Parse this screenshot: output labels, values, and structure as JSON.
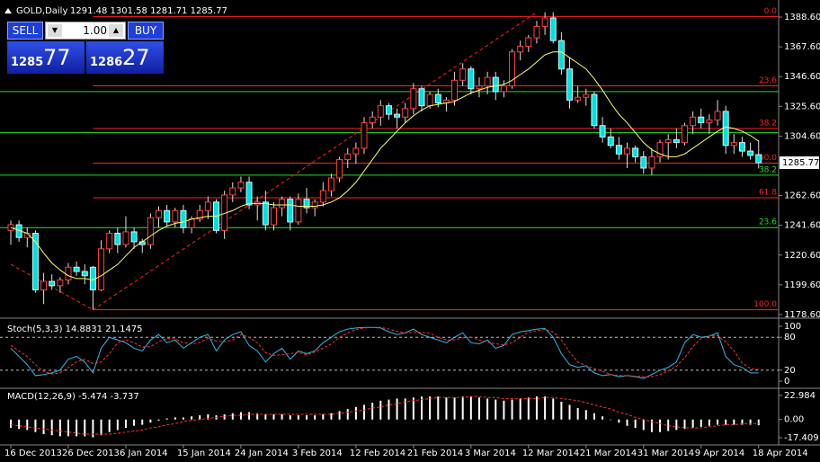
{
  "trade_panel": {
    "sell": "SELL",
    "buy": "BUY",
    "lot": "1.00",
    "bid_big": "1285",
    "bid_small": "77",
    "ask_big": "1286",
    "ask_small": "27"
  },
  "chart_data": [
    {
      "type": "candlestick",
      "title": "GOLD,Daily",
      "quote": "1291.48 1301.58 1281.71 1285.77",
      "categories": [
        "16 Dec 2013",
        null,
        null,
        null,
        null,
        null,
        null,
        "26 Dec 2013",
        null,
        null,
        null,
        null,
        null,
        null,
        "6 Jan 2014",
        null,
        null,
        null,
        null,
        null,
        null,
        "15 Jan 2014",
        null,
        null,
        null,
        null,
        null,
        null,
        "24 Jan 2014",
        null,
        null,
        null,
        null,
        null,
        null,
        "3 Feb 2014",
        null,
        null,
        null,
        null,
        null,
        null,
        "12 Feb 2014",
        null,
        null,
        null,
        null,
        null,
        null,
        "21 Feb 2014",
        null,
        null,
        null,
        null,
        null,
        null,
        "3 Mar 2014",
        null,
        null,
        null,
        null,
        null,
        null,
        "12 Mar 2014",
        null,
        null,
        null,
        null,
        null,
        null,
        "21 Mar 2014",
        null,
        null,
        null,
        null,
        null,
        null,
        "31 Mar 2014",
        null,
        null,
        null,
        null,
        null,
        null,
        "9 Apr 2014",
        null,
        null,
        null,
        null,
        null,
        null,
        "18 Apr 2014"
      ],
      "ohlc": [
        [
          1238,
          1245,
          1228,
          1242
        ],
        [
          1242,
          1245,
          1230,
          1233
        ],
        [
          1233,
          1240,
          1226,
          1236
        ],
        [
          1236,
          1238,
          1194,
          1196
        ],
        [
          1196,
          1208,
          1186,
          1202
        ],
        [
          1202,
          1207,
          1196,
          1199
        ],
        [
          1199,
          1205,
          1194,
          1203
        ],
        [
          1203,
          1215,
          1200,
          1212
        ],
        [
          1212,
          1216,
          1206,
          1209
        ],
        [
          1209,
          1214,
          1200,
          1206
        ],
        [
          1212,
          1213,
          1182,
          1196
        ],
        [
          1196,
          1231,
          1195,
          1225
        ],
        [
          1225,
          1238,
          1222,
          1236
        ],
        [
          1236,
          1240,
          1222,
          1228
        ],
        [
          1228,
          1248,
          1226,
          1237
        ],
        [
          1237,
          1240,
          1225,
          1230
        ],
        [
          1230,
          1232,
          1222,
          1228
        ],
        [
          1228,
          1250,
          1225,
          1247
        ],
        [
          1247,
          1255,
          1240,
          1252
        ],
        [
          1252,
          1256,
          1241,
          1244
        ],
        [
          1244,
          1254,
          1240,
          1252
        ],
        [
          1252,
          1256,
          1236,
          1240
        ],
        [
          1240,
          1248,
          1236,
          1246
        ],
        [
          1246,
          1256,
          1244,
          1252
        ],
        [
          1252,
          1262,
          1246,
          1258
        ],
        [
          1258,
          1260,
          1236,
          1238
        ],
        [
          1238,
          1266,
          1232,
          1263
        ],
        [
          1263,
          1272,
          1258,
          1268
        ],
        [
          1268,
          1276,
          1265,
          1272
        ],
        [
          1272,
          1276,
          1253,
          1256
        ],
        [
          1256,
          1262,
          1245,
          1258
        ],
        [
          1258,
          1266,
          1238,
          1242
        ],
        [
          1242,
          1258,
          1238,
          1254
        ],
        [
          1254,
          1262,
          1248,
          1260
        ],
        [
          1260,
          1262,
          1238,
          1244
        ],
        [
          1244,
          1264,
          1242,
          1260
        ],
        [
          1260,
          1268,
          1250,
          1254
        ],
        [
          1254,
          1260,
          1248,
          1258
        ],
        [
          1258,
          1272,
          1255,
          1266
        ],
        [
          1266,
          1278,
          1262,
          1275
        ],
        [
          1275,
          1290,
          1272,
          1288
        ],
        [
          1288,
          1296,
          1282,
          1292
        ],
        [
          1292,
          1300,
          1285,
          1296
        ],
        [
          1296,
          1318,
          1292,
          1314
        ],
        [
          1314,
          1322,
          1310,
          1318
        ],
        [
          1318,
          1330,
          1312,
          1326
        ],
        [
          1326,
          1328,
          1316,
          1320
        ],
        [
          1320,
          1324,
          1310,
          1318
        ],
        [
          1318,
          1328,
          1314,
          1324
        ],
        [
          1324,
          1342,
          1320,
          1338
        ],
        [
          1338,
          1340,
          1322,
          1326
        ],
        [
          1326,
          1336,
          1324,
          1334
        ],
        [
          1334,
          1338,
          1325,
          1328
        ],
        [
          1328,
          1332,
          1322,
          1330
        ],
        [
          1330,
          1350,
          1326,
          1344
        ],
        [
          1344,
          1356,
          1340,
          1352
        ],
        [
          1352,
          1354,
          1334,
          1338
        ],
        [
          1338,
          1346,
          1332,
          1340
        ],
        [
          1340,
          1350,
          1334,
          1346
        ],
        [
          1346,
          1350,
          1330,
          1336
        ],
        [
          1336,
          1344,
          1332,
          1340
        ],
        [
          1340,
          1366,
          1338,
          1364
        ],
        [
          1364,
          1372,
          1358,
          1368
        ],
        [
          1368,
          1376,
          1364,
          1374
        ],
        [
          1374,
          1386,
          1370,
          1382
        ],
        [
          1382,
          1392,
          1376,
          1388
        ],
        [
          1388,
          1392,
          1370,
          1372
        ],
        [
          1372,
          1378,
          1348,
          1352
        ],
        [
          1352,
          1360,
          1324,
          1330
        ],
        [
          1330,
          1340,
          1328,
          1332
        ],
        [
          1332,
          1338,
          1326,
          1334
        ],
        [
          1334,
          1336,
          1310,
          1312
        ],
        [
          1312,
          1318,
          1300,
          1304
        ],
        [
          1304,
          1310,
          1296,
          1298
        ],
        [
          1298,
          1304,
          1288,
          1292
        ],
        [
          1292,
          1300,
          1282,
          1296
        ],
        [
          1296,
          1298,
          1286,
          1290
        ],
        [
          1290,
          1294,
          1278,
          1282
        ],
        [
          1282,
          1296,
          1277,
          1290
        ],
        [
          1290,
          1302,
          1286,
          1300
        ],
        [
          1300,
          1306,
          1288,
          1302
        ],
        [
          1302,
          1310,
          1296,
          1300
        ],
        [
          1300,
          1314,
          1298,
          1312
        ],
        [
          1312,
          1322,
          1306,
          1318
        ],
        [
          1318,
          1324,
          1310,
          1314
        ],
        [
          1314,
          1320,
          1306,
          1316
        ],
        [
          1316,
          1330,
          1312,
          1322
        ],
        [
          1322,
          1326,
          1292,
          1298
        ],
        [
          1298,
          1306,
          1292,
          1300
        ],
        [
          1300,
          1304,
          1290,
          1294
        ],
        [
          1294,
          1300,
          1288,
          1291
        ],
        [
          1291.48,
          1301.58,
          1281.71,
          1285.77
        ]
      ],
      "ma": {
        "color": "#ffff66",
        "values": [
          1240,
          1238,
          1236,
          1230,
          1222,
          1215,
          1210,
          1206,
          1204,
          1204,
          1203,
          1206,
          1210,
          1214,
          1220,
          1226,
          1230,
          1234,
          1238,
          1241,
          1243,
          1244,
          1246,
          1247,
          1248,
          1248,
          1250,
          1252,
          1255,
          1257,
          1257,
          1257,
          1256,
          1256,
          1256,
          1255,
          1255,
          1255,
          1256,
          1258,
          1261,
          1266,
          1272,
          1280,
          1288,
          1296,
          1302,
          1308,
          1314,
          1319,
          1323,
          1326,
          1327,
          1328,
          1329,
          1332,
          1335,
          1337,
          1339,
          1340,
          1341,
          1344,
          1348,
          1352,
          1357,
          1362,
          1364,
          1364,
          1360,
          1356,
          1352,
          1345,
          1337,
          1328,
          1320,
          1314,
          1307,
          1300,
          1295,
          1292,
          1290,
          1290,
          1292,
          1296,
          1300,
          1304,
          1308,
          1311,
          1310,
          1308,
          1305,
          1301
        ]
      },
      "bull_fill": "#000000",
      "bull_edge": "#ff4040",
      "bear_fill": "#00e0e0",
      "bear_edge": "#c0ffff",
      "wick_color": "#e0e0e0",
      "fibo": {
        "color": "#ff2020",
        "levels": [
          {
            "value": 1389,
            "label": "0.0"
          },
          {
            "value": 1340.1,
            "label": "23.6"
          },
          {
            "value": 1309.9,
            "label": "38.2"
          },
          {
            "value": 1285.5,
            "label": "50.0"
          },
          {
            "value": 1261.1,
            "label": "61.8"
          },
          {
            "value": 1182,
            "label": "100.0"
          }
        ]
      },
      "fibo2": {
        "color": "#20e020",
        "levels": [
          {
            "value": 1336
          },
          {
            "value": 1307
          },
          {
            "value": 1277,
            "label": "38.2"
          },
          {
            "value": 1240,
            "label": "23.6"
          }
        ]
      },
      "trendlines": [
        [
          [
            0,
            1214
          ],
          [
            10,
            1182
          ]
        ],
        [
          [
            10,
            1182
          ],
          [
            64,
            1392
          ]
        ]
      ],
      "current_price": 1285.77,
      "ylim": [
        1177.3,
        1399.4
      ],
      "yticks": [
        {
          "value": 1388.6,
          "label": "1388.60"
        },
        {
          "value": 1367.6,
          "label": "1367.60"
        },
        {
          "value": 1346.6,
          "label": "1346.60"
        },
        {
          "value": 1325.6,
          "label": "1325.60"
        },
        {
          "value": 1304.6,
          "label": "1304.60"
        },
        {
          "value": 1262.6,
          "label": "1262.60"
        },
        {
          "value": 1241.6,
          "label": "1241.60"
        },
        {
          "value": 1220.6,
          "label": "1220.60"
        },
        {
          "value": 1199.6,
          "label": "1199.60"
        },
        {
          "value": 1178.6,
          "label": "1178.60"
        }
      ]
    },
    {
      "type": "line",
      "title": "Stoch(5,3,3) 14.8831 21.1475",
      "series": [
        {
          "color": "#33b8e8",
          "values": [
            60,
            45,
            30,
            10,
            12,
            15,
            20,
            40,
            45,
            35,
            15,
            60,
            80,
            75,
            70,
            60,
            55,
            75,
            85,
            70,
            75,
            60,
            70,
            80,
            85,
            55,
            75,
            85,
            90,
            65,
            55,
            35,
            50,
            60,
            40,
            55,
            50,
            55,
            70,
            80,
            90,
            95,
            97,
            98,
            98,
            97,
            90,
            85,
            88,
            95,
            85,
            80,
            75,
            70,
            80,
            88,
            70,
            68,
            75,
            60,
            65,
            85,
            90,
            92,
            95,
            96,
            80,
            50,
            30,
            25,
            28,
            15,
            10,
            12,
            8,
            10,
            8,
            5,
            12,
            20,
            25,
            35,
            70,
            85,
            80,
            82,
            88,
            45,
            30,
            25,
            15,
            14.9
          ]
        },
        {
          "color": "#ff3030",
          "dash": true,
          "values": [
            65,
            55,
            45,
            30,
            18,
            13,
            15,
            25,
            35,
            40,
            32,
            35,
            50,
            70,
            75,
            70,
            62,
            63,
            72,
            78,
            77,
            70,
            68,
            70,
            78,
            73,
            72,
            75,
            85,
            80,
            70,
            52,
            47,
            48,
            50,
            52,
            48,
            53,
            60,
            68,
            80,
            88,
            94,
            97,
            98,
            98,
            95,
            91,
            88,
            89,
            89,
            87,
            80,
            75,
            75,
            79,
            80,
            75,
            71,
            68,
            66,
            70,
            80,
            89,
            92,
            94,
            90,
            75,
            53,
            35,
            28,
            23,
            18,
            12,
            10,
            10,
            9,
            8,
            8,
            12,
            19,
            27,
            43,
            63,
            78,
            82,
            83,
            72,
            55,
            33,
            23,
            21.1
          ]
        }
      ],
      "levels": [
        80,
        20
      ],
      "ylim": [
        -9.8,
        111.5
      ],
      "yticks": [
        100,
        80,
        20,
        0
      ]
    },
    {
      "type": "bar",
      "title": "MACD(12,26,9) -5.474 -3.737",
      "color": "#ffffff",
      "values": [
        -8,
        -9,
        -10,
        -12,
        -14,
        -15,
        -16,
        -16,
        -16,
        -16,
        -17,
        -15,
        -12,
        -10,
        -8,
        -6,
        -5,
        -3,
        -1,
        1,
        2,
        2,
        3,
        4,
        5,
        4,
        5,
        6,
        7,
        7,
        6,
        5,
        5,
        5,
        4,
        4,
        4,
        4,
        5,
        6,
        8,
        10,
        12,
        14,
        16,
        18,
        19,
        20,
        20,
        21,
        22,
        22,
        22,
        21,
        21,
        22,
        22,
        21,
        20,
        19,
        18,
        19,
        20,
        21,
        22,
        22,
        20,
        17,
        14,
        11,
        9,
        6,
        3,
        0,
        -3,
        -6,
        -8,
        -10,
        -12,
        -12,
        -11,
        -10,
        -9,
        -8,
        -7,
        -6,
        -5,
        -5,
        -5,
        -5,
        -5,
        -5.474
      ],
      "signal": {
        "color": "#ff3030",
        "values": [
          -5,
          -6,
          -7,
          -8,
          -9,
          -10,
          -11,
          -12,
          -13,
          -14,
          -14,
          -14,
          -14,
          -13,
          -12,
          -11,
          -10,
          -8,
          -7,
          -5,
          -4,
          -2,
          -1,
          0,
          1,
          2,
          3,
          4,
          4,
          5,
          5,
          5,
          5,
          5,
          5,
          5,
          5,
          5,
          5,
          5,
          6,
          7,
          8,
          9,
          11,
          12,
          14,
          15,
          17,
          18,
          19,
          20,
          21,
          21,
          21,
          21,
          22,
          22,
          21,
          21,
          20,
          20,
          20,
          20,
          20,
          21,
          21,
          20,
          19,
          18,
          16,
          14,
          12,
          10,
          7,
          5,
          2,
          0,
          -2,
          -4,
          -6,
          -7,
          -8,
          -8,
          -8,
          -7,
          -6,
          -5,
          -5,
          -4,
          -4,
          -3.737
        ]
      },
      "ylim": [
        -23.4,
        28.1
      ],
      "yticks": [
        22.984,
        {
          "value": 0,
          "label": "0.00"
        },
        -17.409
      ]
    }
  ]
}
